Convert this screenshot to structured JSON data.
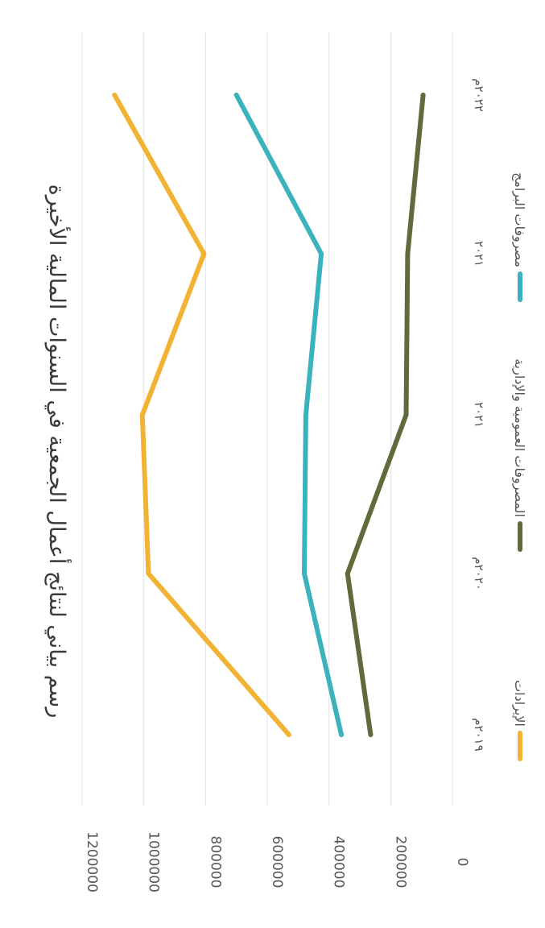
{
  "chart_data": {
    "type": "line",
    "title": "رسم بياني لنتائج أعمال الجمعية في السنوات المالية الأخيرة",
    "xlabel": "",
    "ylabel": "",
    "categories": [
      "٢٠١٩م",
      "٢٠٢٠م",
      "٢٠٢١",
      "٢٠٢١",
      "٢٠٢٢م"
    ],
    "ylim": [
      0,
      1200000
    ],
    "yticks": [
      "0",
      "200000",
      "400000",
      "600000",
      "800000",
      "1000000",
      "1200000"
    ],
    "grid": true,
    "legend_position": "bottom",
    "series": [
      {
        "name": "الإيرادات",
        "color": "#f2b233",
        "values": [
          530000,
          985000,
          1005000,
          805000,
          1095000
        ]
      },
      {
        "name": "المصروفات العمومية والإدارية",
        "color": "#5d6c3a",
        "values": [
          265000,
          340000,
          150000,
          145000,
          95000
        ]
      },
      {
        "name": "مصروفات البرامج",
        "color": "#3bb3bd",
        "values": [
          360000,
          480000,
          475000,
          425000,
          700000
        ]
      }
    ]
  }
}
